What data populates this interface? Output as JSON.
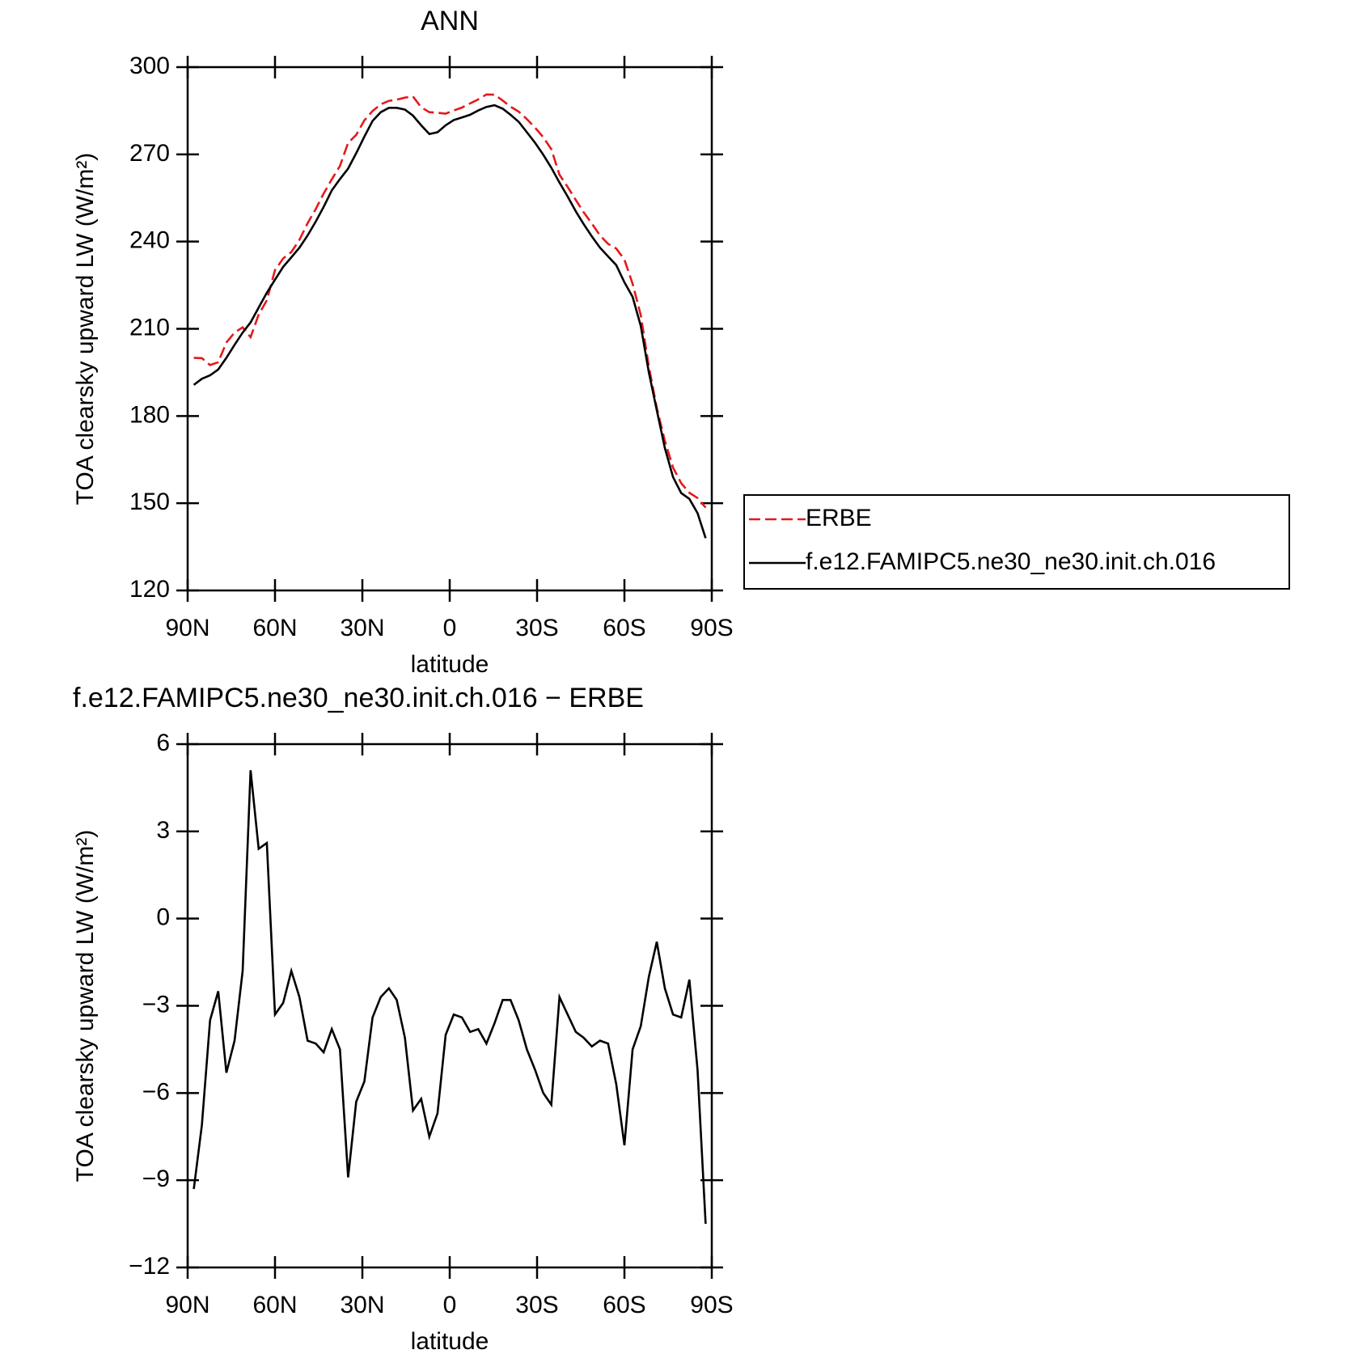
{
  "chart_data": [
    {
      "type": "line",
      "title": "ANN",
      "x_label": "latitude",
      "y_label": "TOA clearsky upward LW (W/m²)",
      "xlim": [
        90,
        -90
      ],
      "xticks": [
        {
          "value": 90,
          "label": "90N"
        },
        {
          "value": 60,
          "label": "60N"
        },
        {
          "value": 30,
          "label": "30N"
        },
        0,
        {
          "value": -30,
          "label": "30S"
        },
        {
          "value": -60,
          "label": "60S"
        },
        {
          "value": -90,
          "label": "90S"
        }
      ],
      "ylim": [
        120,
        300
      ],
      "yticks": [
        120,
        150,
        180,
        210,
        240,
        270,
        300
      ],
      "legend": "right",
      "x": [
        87.9,
        85.1,
        82.3,
        79.5,
        76.7,
        73.9,
        71.1,
        68.4,
        65.6,
        62.8,
        60.0,
        57.2,
        54.4,
        51.6,
        48.8,
        46.0,
        43.3,
        40.5,
        37.7,
        34.9,
        32.1,
        29.3,
        26.5,
        23.7,
        20.9,
        18.2,
        15.4,
        12.6,
        9.8,
        7.0,
        4.2,
        1.4,
        -1.4,
        -4.2,
        -7.0,
        -9.8,
        -12.6,
        -15.4,
        -18.2,
        -20.9,
        -23.7,
        -26.5,
        -29.3,
        -32.1,
        -34.9,
        -37.7,
        -40.5,
        -43.3,
        -46.0,
        -48.8,
        -51.6,
        -54.4,
        -57.2,
        -60.0,
        -62.8,
        -65.6,
        -68.4,
        -71.1,
        -73.9,
        -76.7,
        -79.5,
        -82.3,
        -85.1,
        -87.9
      ],
      "series": [
        {
          "name": "ERBE",
          "color": "#e41a1c",
          "linestyle": "dashed",
          "values": [
            200.0,
            199.9,
            197.5,
            198.5,
            205.3,
            208.7,
            210.5,
            207.1,
            214.9,
            219.8,
            230.2,
            234.2,
            236.4,
            240.6,
            246.3,
            251.2,
            256.5,
            261.4,
            266,
            274,
            276.7,
            281.7,
            284.9,
            287.2,
            288.4,
            288.8,
            289.5,
            289.9,
            286.2,
            284.5,
            284.3,
            284,
            285.1,
            286.1,
            287.5,
            288.9,
            290.6,
            290.5,
            288.5,
            286.4,
            284.7,
            282.1,
            279.2,
            275.9,
            271.8,
            263,
            258.8,
            254.3,
            250.1,
            246.2,
            242.1,
            239.2,
            237.6,
            233.8,
            225.5,
            214.7,
            197,
            182.8,
            171.4,
            162.3,
            156.9,
            153.6,
            151.8,
            148.5
          ]
        },
        {
          "name": "f.e12.FAMIPC5.ne30_ne30.init.ch.016",
          "color": "#000000",
          "linestyle": "solid",
          "values": [
            190.7,
            192.8,
            194,
            196,
            200,
            204.5,
            208.7,
            212.2,
            217.3,
            222.4,
            226.9,
            231.3,
            234.6,
            237.9,
            242.1,
            246.9,
            251.9,
            257.6,
            261.5,
            265.1,
            270.4,
            276.1,
            281.5,
            284.5,
            286,
            286,
            285.4,
            283.3,
            280,
            277,
            277.6,
            280,
            281.8,
            282.7,
            283.6,
            285.1,
            286.3,
            286.9,
            285.7,
            283.6,
            281.2,
            277.6,
            274,
            269.9,
            265.4,
            260.3,
            255.5,
            250.4,
            246,
            241.8,
            237.9,
            234.9,
            231.9,
            226,
            221,
            211,
            195,
            182,
            169,
            159,
            153.5,
            151.5,
            146.6,
            138
          ]
        }
      ]
    },
    {
      "type": "line",
      "title": "f.e12.FAMIPC5.ne30_ne30.init.ch.016 − ERBE",
      "x_label": "latitude",
      "y_label": "TOA clearsky upward LW (W/m²)",
      "xlim": [
        90,
        -90
      ],
      "xticks": [
        {
          "value": 90,
          "label": "90N"
        },
        {
          "value": 60,
          "label": "60N"
        },
        {
          "value": 30,
          "label": "30N"
        },
        0,
        {
          "value": -30,
          "label": "30S"
        },
        {
          "value": -60,
          "label": "60S"
        },
        {
          "value": -90,
          "label": "90S"
        }
      ],
      "ylim": [
        -12,
        6
      ],
      "yticks": [
        {
          "value": -12,
          "label": "−12"
        },
        {
          "value": -9,
          "label": "−9"
        },
        {
          "value": -6,
          "label": "−6"
        },
        {
          "value": -3,
          "label": "−3"
        },
        0,
        3,
        6
      ],
      "x": [
        87.9,
        85.1,
        82.3,
        79.5,
        76.7,
        73.9,
        71.1,
        68.4,
        65.6,
        62.8,
        60.0,
        57.2,
        54.4,
        51.6,
        48.8,
        46.0,
        43.3,
        40.5,
        37.7,
        34.9,
        32.1,
        29.3,
        26.5,
        23.7,
        20.9,
        18.2,
        15.4,
        12.6,
        9.8,
        7.0,
        4.2,
        1.4,
        -1.4,
        -4.2,
        -7.0,
        -9.8,
        -12.6,
        -15.4,
        -18.2,
        -20.9,
        -23.7,
        -26.5,
        -29.3,
        -32.1,
        -34.9,
        -37.7,
        -40.5,
        -43.3,
        -46.0,
        -48.8,
        -51.6,
        -54.4,
        -57.2,
        -60.0,
        -62.8,
        -65.6,
        -68.4,
        -71.1,
        -73.9,
        -76.7,
        -79.5,
        -82.3,
        -85.1,
        -87.9
      ],
      "color": "#000000",
      "values": [
        -9.3,
        -7.1,
        -3.5,
        -2.5,
        -5.3,
        -4.2,
        -1.8,
        5.1,
        2.4,
        2.6,
        -3.3,
        -2.9,
        -1.8,
        -2.7,
        -4.2,
        -4.3,
        -4.6,
        -3.8,
        -4.5,
        -8.9,
        -6.3,
        -5.6,
        -3.4,
        -2.7,
        -2.4,
        -2.8,
        -4.1,
        -6.6,
        -6.2,
        -7.5,
        -6.7,
        -4.0,
        -3.3,
        -3.4,
        -3.9,
        -3.8,
        -4.3,
        -3.6,
        -2.8,
        -2.8,
        -3.5,
        -4.5,
        -5.2,
        -6.0,
        -6.4,
        -2.7,
        -3.3,
        -3.9,
        -4.1,
        -4.4,
        -4.2,
        -4.3,
        -5.7,
        -7.8,
        -4.5,
        -3.7,
        -2.0,
        -0.8,
        -2.4,
        -3.3,
        -3.4,
        -2.1,
        -5.2,
        -10.5
      ]
    }
  ]
}
